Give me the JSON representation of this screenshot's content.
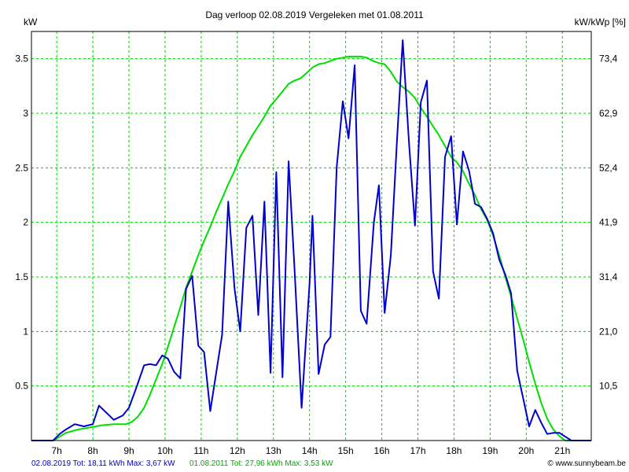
{
  "chart_data": {
    "type": "line",
    "title": "Dag  verloop 02.08.2019   Vergeleken met 01.08.2011",
    "y_left_label": "kW",
    "y_right_label": "kW/kWp [%]",
    "x_ticks": [
      "7h",
      "8h",
      "9h",
      "10h",
      "11h",
      "12h",
      "13h",
      "14h",
      "15h",
      "16h",
      "17h",
      "18h",
      "19h",
      "20h",
      "21h"
    ],
    "x_range": [
      6.3,
      21.8
    ],
    "ylim": [
      0,
      3.75
    ],
    "y_left_ticks": [
      "0.5",
      "1",
      "1.5",
      "2",
      "2.5",
      "3",
      "3.5"
    ],
    "y_right_ticks": [
      "10,5",
      "21,0",
      "31,4",
      "41,9",
      "52,4",
      "62,9",
      "73,4"
    ],
    "grid": true,
    "legend": {
      "series1_text": "02.08.2019 Tot: 18,11 kWh Max: 3,67 kW",
      "series2_text": "01.08.2011 Tot: 27,96 kWh Max: 3,53 kW",
      "watermark": "© www.sunnybeam.be"
    },
    "series": [
      {
        "name": "02.08.2019",
        "color": "#0000cc",
        "points": [
          [
            6.3,
            0
          ],
          [
            6.9,
            0
          ],
          [
            7.08,
            0.06
          ],
          [
            7.25,
            0.1
          ],
          [
            7.5,
            0.15
          ],
          [
            7.75,
            0.13
          ],
          [
            8.0,
            0.15
          ],
          [
            8.17,
            0.32
          ],
          [
            8.58,
            0.19
          ],
          [
            8.83,
            0.23
          ],
          [
            9.0,
            0.3
          ],
          [
            9.2,
            0.48
          ],
          [
            9.42,
            0.69
          ],
          [
            9.58,
            0.7
          ],
          [
            9.75,
            0.69
          ],
          [
            9.92,
            0.78
          ],
          [
            10.08,
            0.75
          ],
          [
            10.25,
            0.63
          ],
          [
            10.42,
            0.57
          ],
          [
            10.58,
            1.39
          ],
          [
            10.75,
            1.51
          ],
          [
            10.92,
            0.87
          ],
          [
            11.08,
            0.81
          ],
          [
            11.25,
            0.27
          ],
          [
            11.58,
            0.97
          ],
          [
            11.75,
            2.19
          ],
          [
            11.92,
            1.4
          ],
          [
            12.08,
            1.0
          ],
          [
            12.25,
            1.95
          ],
          [
            12.42,
            2.06
          ],
          [
            12.58,
            1.15
          ],
          [
            12.75,
            2.19
          ],
          [
            12.92,
            0.62
          ],
          [
            13.08,
            2.46
          ],
          [
            13.25,
            0.58
          ],
          [
            13.42,
            2.56
          ],
          [
            13.58,
            1.6
          ],
          [
            13.78,
            0.3
          ],
          [
            14.0,
            1.44
          ],
          [
            14.08,
            2.06
          ],
          [
            14.25,
            0.61
          ],
          [
            14.42,
            0.88
          ],
          [
            14.58,
            0.95
          ],
          [
            14.75,
            2.5
          ],
          [
            14.92,
            3.11
          ],
          [
            15.08,
            2.77
          ],
          [
            15.25,
            3.44
          ],
          [
            15.42,
            1.19
          ],
          [
            15.58,
            1.07
          ],
          [
            15.78,
            2.0
          ],
          [
            15.92,
            2.34
          ],
          [
            16.08,
            1.17
          ],
          [
            16.25,
            1.7
          ],
          [
            16.42,
            2.75
          ],
          [
            16.58,
            3.67
          ],
          [
            16.75,
            2.75
          ],
          [
            16.92,
            1.97
          ],
          [
            17.08,
            3.1
          ],
          [
            17.25,
            3.3
          ],
          [
            17.42,
            1.55
          ],
          [
            17.58,
            1.3
          ],
          [
            17.75,
            2.6
          ],
          [
            17.92,
            2.79
          ],
          [
            18.08,
            1.98
          ],
          [
            18.25,
            2.65
          ],
          [
            18.42,
            2.47
          ],
          [
            18.58,
            2.17
          ],
          [
            18.75,
            2.14
          ],
          [
            18.92,
            2.03
          ],
          [
            19.08,
            1.9
          ],
          [
            19.25,
            1.66
          ],
          [
            19.42,
            1.52
          ],
          [
            19.58,
            1.35
          ],
          [
            19.75,
            0.64
          ],
          [
            19.92,
            0.38
          ],
          [
            20.08,
            0.13
          ],
          [
            20.25,
            0.28
          ],
          [
            20.42,
            0.16
          ],
          [
            20.58,
            0.06
          ],
          [
            20.75,
            0.07
          ],
          [
            20.92,
            0.07
          ],
          [
            21.25,
            0.0
          ],
          [
            21.8,
            0
          ]
        ]
      },
      {
        "name": "01.08.2011",
        "color": "#00dd00",
        "points": [
          [
            6.3,
            0
          ],
          [
            6.9,
            0
          ],
          [
            7.25,
            0.07
          ],
          [
            7.58,
            0.1
          ],
          [
            7.92,
            0.12
          ],
          [
            8.25,
            0.14
          ],
          [
            8.58,
            0.15
          ],
          [
            8.92,
            0.15
          ],
          [
            9.08,
            0.17
          ],
          [
            9.25,
            0.22
          ],
          [
            9.42,
            0.3
          ],
          [
            9.58,
            0.42
          ],
          [
            9.75,
            0.56
          ],
          [
            9.92,
            0.7
          ],
          [
            10.08,
            0.86
          ],
          [
            10.25,
            1.04
          ],
          [
            10.42,
            1.22
          ],
          [
            10.58,
            1.4
          ],
          [
            10.75,
            1.55
          ],
          [
            10.92,
            1.7
          ],
          [
            11.08,
            1.83
          ],
          [
            11.25,
            1.96
          ],
          [
            11.42,
            2.1
          ],
          [
            11.58,
            2.22
          ],
          [
            11.75,
            2.35
          ],
          [
            11.92,
            2.47
          ],
          [
            12.08,
            2.6
          ],
          [
            12.25,
            2.7
          ],
          [
            12.42,
            2.8
          ],
          [
            12.58,
            2.88
          ],
          [
            12.75,
            2.97
          ],
          [
            12.92,
            3.07
          ],
          [
            13.08,
            3.13
          ],
          [
            13.25,
            3.2
          ],
          [
            13.42,
            3.27
          ],
          [
            13.58,
            3.3
          ],
          [
            13.75,
            3.32
          ],
          [
            13.92,
            3.37
          ],
          [
            14.08,
            3.42
          ],
          [
            14.25,
            3.45
          ],
          [
            14.42,
            3.46
          ],
          [
            14.58,
            3.48
          ],
          [
            14.75,
            3.5
          ],
          [
            14.92,
            3.51
          ],
          [
            15.08,
            3.52
          ],
          [
            15.25,
            3.52
          ],
          [
            15.42,
            3.52
          ],
          [
            15.58,
            3.51
          ],
          [
            15.75,
            3.48
          ],
          [
            15.92,
            3.46
          ],
          [
            16.08,
            3.45
          ],
          [
            16.25,
            3.38
          ],
          [
            16.42,
            3.29
          ],
          [
            16.58,
            3.24
          ],
          [
            16.75,
            3.2
          ],
          [
            16.92,
            3.14
          ],
          [
            17.08,
            3.05
          ],
          [
            17.25,
            2.97
          ],
          [
            17.42,
            2.88
          ],
          [
            17.58,
            2.8
          ],
          [
            17.75,
            2.7
          ],
          [
            17.92,
            2.6
          ],
          [
            18.08,
            2.55
          ],
          [
            18.25,
            2.47
          ],
          [
            18.42,
            2.35
          ],
          [
            18.58,
            2.25
          ],
          [
            18.75,
            2.12
          ],
          [
            18.92,
            2.02
          ],
          [
            19.08,
            1.88
          ],
          [
            19.25,
            1.7
          ],
          [
            19.42,
            1.5
          ],
          [
            19.58,
            1.32
          ],
          [
            19.75,
            1.12
          ],
          [
            19.92,
            0.92
          ],
          [
            20.08,
            0.72
          ],
          [
            20.25,
            0.52
          ],
          [
            20.42,
            0.34
          ],
          [
            20.58,
            0.2
          ],
          [
            20.75,
            0.1
          ],
          [
            20.92,
            0.04
          ],
          [
            21.08,
            0.0
          ],
          [
            21.8,
            0
          ]
        ]
      }
    ]
  }
}
